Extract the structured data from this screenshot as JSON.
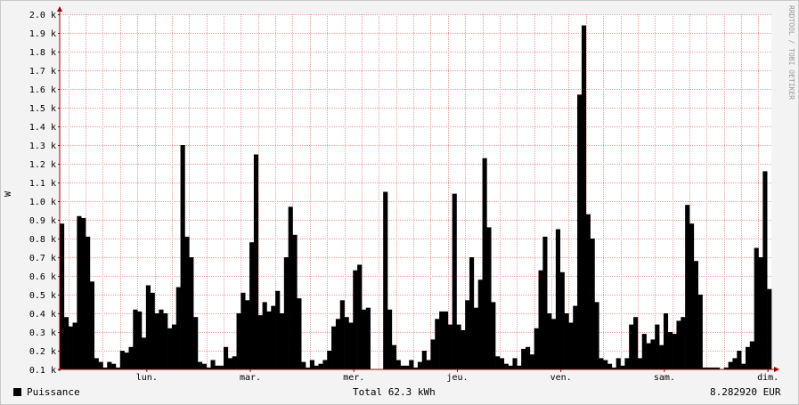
{
  "watermark": "RRDTOOL / TOBI OETIKER",
  "legend": {
    "label": "Puissance",
    "swatch_color": "#000000"
  },
  "total_text": "Total 62.3 kWh",
  "cost_text": "8.282920 EUR",
  "colors": {
    "bars": "#000000",
    "grid": "#e8a0a0",
    "background": "#ffffff",
    "axis": "#a00000"
  },
  "chart_data": {
    "type": "bar",
    "ylabel": "W",
    "ylim": [
      100,
      2000
    ],
    "y_ticks": [
      100,
      200,
      300,
      400,
      500,
      600,
      700,
      800,
      900,
      1000,
      1100,
      1200,
      1300,
      1400,
      1500,
      1600,
      1700,
      1800,
      1900,
      2000
    ],
    "y_tick_labels": [
      "0.1 k",
      "0.2 k",
      "0.3 k",
      "0.4 k",
      "0.5 k",
      "0.6 k",
      "0.7 k",
      "0.8 k",
      "0.9 k",
      "1.0 k",
      "1.1 k",
      "1.2 k",
      "1.3 k",
      "1.4 k",
      "1.5 k",
      "1.6 k",
      "1.7 k",
      "1.8 k",
      "1.9 k",
      "2.0 k"
    ],
    "x_ticks": [
      {
        "label": "lun.",
        "index": 24
      },
      {
        "label": "mar.",
        "index": 48
      },
      {
        "label": "mer.",
        "index": 72
      },
      {
        "label": "jeu.",
        "index": 96
      },
      {
        "label": "ven.",
        "index": 120
      },
      {
        "label": "sam.",
        "index": 144
      },
      {
        "label": "dim.",
        "index": 168
      }
    ],
    "grid": true,
    "legend_position": "bottom-left",
    "series": [
      {
        "name": "Puissance",
        "values": [
          880,
          380,
          330,
          350,
          920,
          910,
          810,
          570,
          160,
          140,
          110,
          140,
          130,
          110,
          200,
          190,
          220,
          420,
          410,
          270,
          550,
          510,
          400,
          420,
          400,
          320,
          340,
          540,
          1300,
          810,
          700,
          380,
          140,
          130,
          110,
          150,
          120,
          120,
          220,
          160,
          170,
          400,
          510,
          470,
          780,
          1250,
          390,
          460,
          410,
          440,
          520,
          400,
          700,
          970,
          820,
          480,
          140,
          110,
          150,
          120,
          130,
          150,
          200,
          330,
          370,
          470,
          380,
          350,
          630,
          660,
          420,
          430,
          100,
          100,
          100,
          1050,
          420,
          230,
          150,
          120,
          120,
          150,
          110,
          140,
          200,
          150,
          260,
          370,
          410,
          410,
          340,
          1040,
          340,
          310,
          470,
          700,
          430,
          580,
          1230,
          860,
          460,
          170,
          160,
          130,
          120,
          160,
          120,
          210,
          220,
          180,
          320,
          630,
          810,
          400,
          370,
          850,
          620,
          400,
          350,
          440,
          1570,
          1940,
          930,
          800,
          460,
          160,
          150,
          130,
          110,
          160,
          120,
          160,
          340,
          380,
          160,
          290,
          240,
          260,
          340,
          230,
          400,
          300,
          290,
          360,
          380,
          980,
          880,
          680,
          500,
          110,
          110,
          110,
          110,
          100,
          110,
          140,
          160,
          200,
          130,
          220,
          250,
          750,
          700,
          1160,
          530
        ]
      }
    ]
  }
}
